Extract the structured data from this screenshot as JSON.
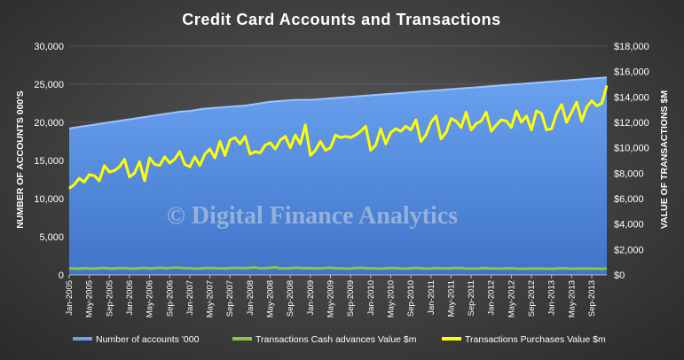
{
  "chart_data": {
    "type": "area",
    "title": "Credit Card Accounts and Transactions",
    "ylabel": "NUMBER OF ACCOUNTS 000'S",
    "y2label": "VALUE OF TRANSACTIONS $M",
    "ylim": [
      0,
      30000
    ],
    "y2lim": [
      0,
      18000
    ],
    "yticks": [
      "0",
      "5,000",
      "10,000",
      "15,000",
      "20,000",
      "25,000",
      "30,000"
    ],
    "y2ticks": [
      "$0",
      "$2,000",
      "$4,000",
      "$6,000",
      "$8,000",
      "$10,000",
      "$12,000",
      "$14,000",
      "$16,000",
      "$18,000"
    ],
    "xtick_labels": [
      "Jan-2005",
      "May-2005",
      "Sep-2005",
      "Jan-2006",
      "May-2006",
      "Sep-2006",
      "Jan-2007",
      "May-2007",
      "Sep-2007",
      "Jan-2008",
      "May-2008",
      "Sep-2008",
      "Jan-2009",
      "May-2009",
      "Sep-2009",
      "Jan-2010",
      "May-2010",
      "Sep-2010",
      "Jan-2011",
      "May-2011",
      "Sep-2011",
      "Jan-2012",
      "May-2012",
      "Sep-2012",
      "Jan-2013",
      "May-2013",
      "Sep-2013"
    ],
    "x_start": "Jan-2005",
    "x_end": "Dec-2013",
    "legend_position": "bottom",
    "watermark": "© Digital Finance Analytics",
    "series": [
      {
        "name": "Number of accounts '000",
        "type": "area",
        "axis": "left",
        "color": "#4f86d9",
        "values": [
          19200,
          19300,
          19400,
          19500,
          19600,
          19700,
          19800,
          19900,
          20000,
          20100,
          20200,
          20300,
          20400,
          20500,
          20600,
          20700,
          20800,
          20900,
          21000,
          21100,
          21200,
          21300,
          21400,
          21450,
          21500,
          21600,
          21700,
          21800,
          21850,
          21900,
          21950,
          22000,
          22050,
          22100,
          22150,
          22200,
          22300,
          22400,
          22500,
          22600,
          22700,
          22750,
          22800,
          22850,
          22900,
          22950,
          22950,
          22950,
          22950,
          23000,
          23050,
          23100,
          23150,
          23200,
          23250,
          23300,
          23350,
          23400,
          23450,
          23500,
          23550,
          23600,
          23650,
          23700,
          23750,
          23800,
          23850,
          23900,
          23950,
          24000,
          24050,
          24100,
          24150,
          24200,
          24250,
          24300,
          24350,
          24400,
          24450,
          24500,
          24550,
          24600,
          24650,
          24700,
          24750,
          24800,
          24850,
          24900,
          24950,
          25000,
          25050,
          25100,
          25150,
          25200,
          25250,
          25300,
          25350,
          25400,
          25450,
          25500,
          25550,
          25600,
          25650,
          25700,
          25750,
          25800,
          25850,
          25900
        ]
      },
      {
        "name": "Transactions Cash advances Value $m",
        "type": "line",
        "axis": "right",
        "color": "#8dc63f",
        "values": [
          520,
          500,
          480,
          530,
          510,
          490,
          520,
          540,
          500,
          510,
          530,
          520,
          510,
          490,
          520,
          550,
          500,
          530,
          560,
          520,
          540,
          580,
          550,
          530,
          520,
          500,
          510,
          530,
          540,
          520,
          510,
          500,
          530,
          550,
          540,
          520,
          560,
          580,
          520,
          530,
          560,
          590,
          520,
          510,
          530,
          560,
          540,
          520,
          530,
          520,
          510,
          540,
          560,
          530,
          520,
          500,
          510,
          540,
          550,
          530,
          520,
          510,
          500,
          520,
          540,
          530,
          510,
          500,
          520,
          540,
          520,
          500,
          510,
          530,
          520,
          500,
          520,
          540,
          530,
          510,
          500,
          490,
          520,
          530,
          510,
          500,
          490,
          510,
          520,
          500,
          490,
          480,
          500,
          510,
          500,
          490,
          480,
          500,
          520,
          510,
          490,
          480,
          500,
          510,
          500,
          490,
          480,
          500
        ]
      },
      {
        "name": "Transactions Purchases Value $m",
        "type": "line",
        "axis": "right",
        "color": "#ffff00",
        "values": [
          6800,
          7100,
          7600,
          7300,
          7900,
          7800,
          7400,
          8600,
          8100,
          8200,
          8500,
          9100,
          7700,
          8000,
          8900,
          7400,
          9200,
          8700,
          8600,
          9300,
          8800,
          9100,
          9700,
          8700,
          8500,
          9300,
          8600,
          9500,
          9900,
          9200,
          10500,
          9400,
          10600,
          10800,
          10300,
          10900,
          9500,
          9700,
          9600,
          10200,
          10400,
          9900,
          10600,
          10900,
          10000,
          11000,
          10300,
          11800,
          9400,
          9800,
          10500,
          9800,
          10000,
          11000,
          10800,
          10900,
          10800,
          11000,
          11300,
          11700,
          9800,
          10200,
          11500,
          10300,
          11200,
          11500,
          11300,
          11700,
          11400,
          12200,
          10500,
          11000,
          12000,
          12500,
          10700,
          11200,
          12300,
          12100,
          11600,
          12800,
          11400,
          11900,
          12100,
          12800,
          11300,
          11800,
          12200,
          12100,
          11600,
          12900,
          12000,
          12500,
          11400,
          12900,
          12700,
          11400,
          11500,
          12700,
          13400,
          12000,
          12800,
          13600,
          12100,
          13200,
          13700,
          13300,
          13500,
          14900
        ]
      }
    ]
  }
}
